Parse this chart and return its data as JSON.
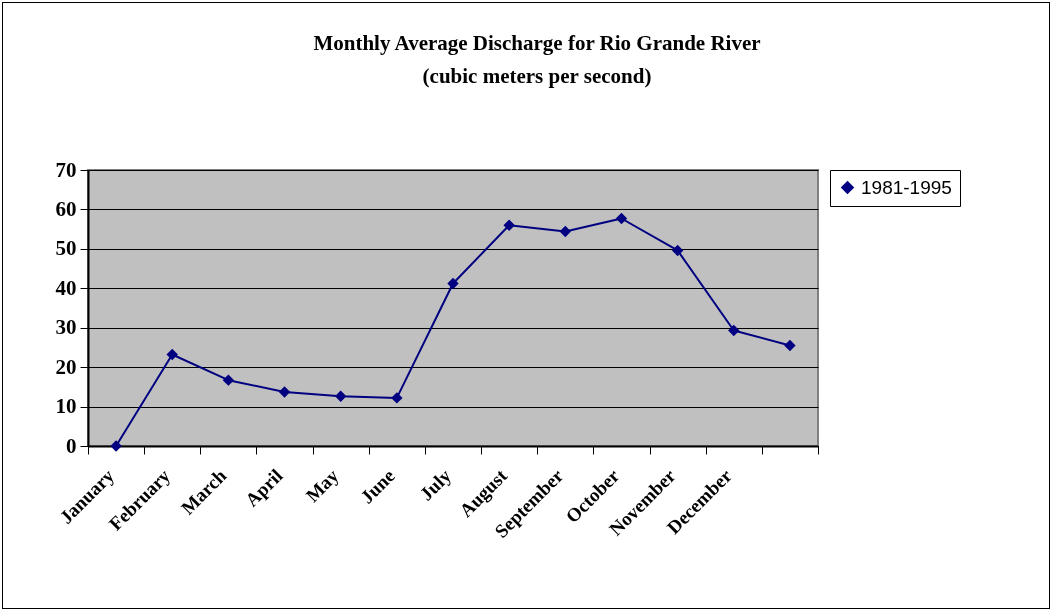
{
  "chart_data": {
    "type": "line",
    "title": "Monthly Average Discharge for Rio Grande River",
    "subtitle": "(cubic meters per second)",
    "categories": [
      "January",
      "February",
      "March",
      "April",
      "May",
      "June",
      "July",
      "August",
      "September",
      "October",
      "November",
      "December",
      null
    ],
    "series": [
      {
        "name": "1981-1995",
        "color": "#000080",
        "values": [
          0,
          23.2,
          16.7,
          13.7,
          12.6,
          12.2,
          41.2,
          56.0,
          54.4,
          57.7,
          49.6,
          29.3,
          25.5
        ]
      }
    ],
    "ylim": [
      0,
      70
    ],
    "yticks": [
      0,
      10,
      20,
      30,
      40,
      50,
      60,
      70
    ],
    "grid": "y",
    "legend": "right",
    "marker": "diamond",
    "line_style": "solid"
  }
}
